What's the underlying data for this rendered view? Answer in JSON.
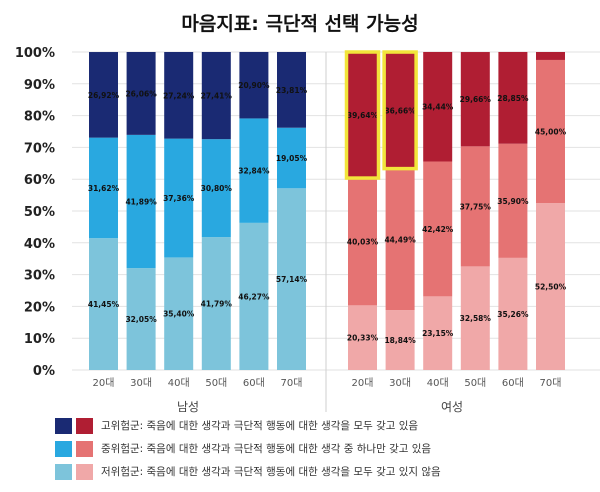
{
  "chart_data": {
    "type": "bar",
    "stacked": true,
    "title": "마음지표: 극단적 선택 가능성",
    "ylim": [
      0,
      100
    ],
    "yticks": [
      "0%",
      "10%",
      "20%",
      "30%",
      "40%",
      "50%",
      "60%",
      "70%",
      "80%",
      "90%",
      "100%"
    ],
    "grid": true,
    "legend_position": "bottom",
    "groups": [
      {
        "name": "남성",
        "categories": [
          "20대",
          "30대",
          "40대",
          "50대",
          "60대",
          "70대"
        ],
        "colors": {
          "low": "#7dc4db",
          "mid": "#29a8e0",
          "high": "#1a2a73"
        },
        "series": [
          {
            "name": "저위험군",
            "values": [
              41.45,
              32.05,
              35.4,
              41.79,
              46.27,
              57.14
            ],
            "labels": [
              "41,45%",
              "32,05%",
              "35,40%",
              "41,79%",
              "46,27%",
              "57,14%"
            ]
          },
          {
            "name": "중위험군",
            "values": [
              31.62,
              41.89,
              37.36,
              30.8,
              32.84,
              19.05
            ],
            "labels": [
              "31,62%",
              "41,89%",
              "37,36%",
              "30,80%",
              "32,84%",
              "19,05%"
            ]
          },
          {
            "name": "고위험군",
            "values": [
              26.92,
              26.06,
              27.24,
              27.41,
              20.9,
              23.81
            ],
            "labels": [
              "26,92%",
              "26,06%",
              "27,24%",
              "27,41%",
              "20,90%",
              "23,81%"
            ]
          }
        ]
      },
      {
        "name": "여성",
        "categories": [
          "20대",
          "30대",
          "40대",
          "50대",
          "60대",
          "70대"
        ],
        "colors": {
          "low": "#f0a8a8",
          "mid": "#e57373",
          "high": "#b01e33"
        },
        "series": [
          {
            "name": "저위험군",
            "values": [
              20.33,
              18.84,
              23.15,
              32.58,
              35.26,
              52.5
            ],
            "labels": [
              "20,33%",
              "18,84%",
              "23,15%",
              "32,58%",
              "35,26%",
              "52,50%"
            ]
          },
          {
            "name": "중위험군",
            "values": [
              40.03,
              44.49,
              42.42,
              37.75,
              35.9,
              45.0
            ],
            "labels": [
              "40,03%",
              "44,49%",
              "42,42%",
              "37,75%",
              "35,90%",
              "45,00%"
            ]
          },
          {
            "name": "고위험군",
            "values": [
              39.64,
              36.66,
              34.44,
              29.66,
              28.85,
              2.5
            ],
            "labels": [
              "39,64%",
              "36,66%",
              "34,44%",
              "29,66%",
              "28,85%",
              ""
            ]
          }
        ]
      }
    ],
    "highlight_color": "#f2e53b",
    "highlighted": [
      {
        "group": "여성",
        "category": "20대",
        "series": "고위험군"
      },
      {
        "group": "여성",
        "category": "30대",
        "series": "고위험군"
      }
    ],
    "legend": [
      {
        "text": "고위험군: 죽음에 대한 생각과 극단적 행동에 대한 생각을 모두 갖고 있음",
        "colors": [
          "#1a2a73",
          "#b01e33"
        ]
      },
      {
        "text": "중위험군: 죽음에 대한 생각과 극단적 행동에 대한 생각 중 하나만 갖고 있음",
        "colors": [
          "#29a8e0",
          "#e57373"
        ]
      },
      {
        "text": "저위험군: 죽음에 대한 생각과 극단적 행동에 대한 생각을 모두 갖고 있지 않음",
        "colors": [
          "#7dc4db",
          "#f0a8a8"
        ]
      }
    ]
  }
}
